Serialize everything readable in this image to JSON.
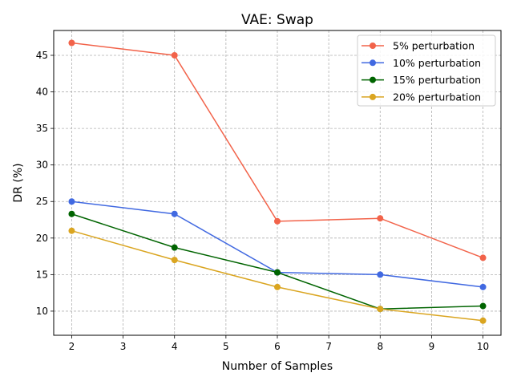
{
  "chart_data": {
    "type": "line",
    "title": "VAE: Swap",
    "xlabel": "Number of Samples",
    "ylabel": "DR (%)",
    "x": [
      2,
      4,
      6,
      8,
      10
    ],
    "xlim": [
      1.65,
      10.35
    ],
    "ylim": [
      6.7,
      48.4
    ],
    "xticks": [
      2,
      3,
      4,
      5,
      6,
      7,
      8,
      9,
      10
    ],
    "yticks": [
      10,
      15,
      20,
      25,
      30,
      35,
      40,
      45
    ],
    "grid": true,
    "legend_position": "top-right",
    "series": [
      {
        "name": "5% perturbation",
        "color": "#f2634a",
        "values": [
          46.7,
          45.0,
          22.3,
          22.7,
          17.3
        ]
      },
      {
        "name": "10% perturbation",
        "color": "#4169e1",
        "values": [
          25.0,
          23.3,
          15.3,
          15.0,
          13.3
        ]
      },
      {
        "name": "15% perturbation",
        "color": "#006400",
        "values": [
          23.3,
          18.7,
          15.3,
          10.3,
          10.7
        ]
      },
      {
        "name": "20% perturbation",
        "color": "#daa520",
        "values": [
          21.0,
          17.0,
          13.3,
          10.3,
          8.7
        ]
      }
    ]
  }
}
